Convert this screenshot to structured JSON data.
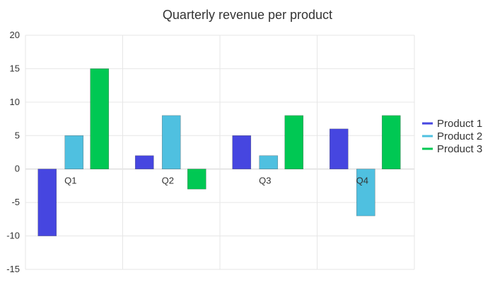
{
  "chart_data": {
    "type": "bar",
    "title": "Quarterly revenue per product",
    "xlabel": "",
    "ylabel": "",
    "categories": [
      "Q1",
      "Q2",
      "Q3",
      "Q4"
    ],
    "series": [
      {
        "name": "Product 1",
        "color": "#4646e0",
        "values": [
          -10,
          2,
          5,
          6
        ]
      },
      {
        "name": "Product 2",
        "color": "#4fc0e0",
        "values": [
          5,
          8,
          2,
          -7
        ]
      },
      {
        "name": "Product 3",
        "color": "#00c853",
        "values": [
          15,
          -3,
          8,
          8
        ]
      }
    ],
    "ylim": [
      -15,
      20
    ],
    "yticks": [
      20,
      15,
      10,
      5,
      0,
      -5,
      -10,
      -15
    ],
    "grid": true,
    "legend_position": "right"
  }
}
